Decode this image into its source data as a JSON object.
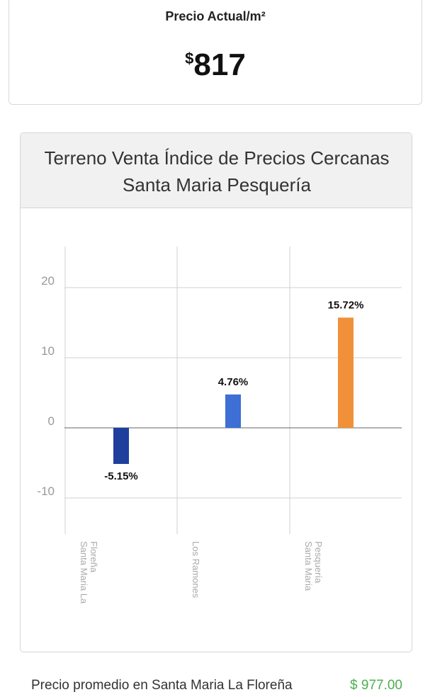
{
  "price_card": {
    "title": "Precio Actual/m²",
    "currency": "$",
    "value": "817"
  },
  "chart_card": {
    "title_line1": "Terreno Venta Índice de Precios Cercanas",
    "title_line2": "Santa Maria Pesquería"
  },
  "chart_data": {
    "type": "bar",
    "title": "Terreno Venta Índice de Precios Cercanas Santa Maria Pesquería",
    "categories": [
      "Santa Maria La Floreña",
      "Los Ramones",
      "Santa Maria Pesquería"
    ],
    "values": [
      -5.15,
      4.76,
      15.72
    ],
    "labels": [
      "-5.15%",
      "4.76%",
      "15.72%"
    ],
    "colors": [
      "#1f3f9c",
      "#3d6fd4",
      "#f0913a"
    ],
    "yticks": [
      20,
      10,
      0,
      -10
    ],
    "ylim": [
      -15,
      26
    ],
    "grid": true,
    "legend": "none"
  },
  "footer": {
    "label": "Precio promedio en Santa Maria La Floreña",
    "value": "$ 977.00"
  }
}
